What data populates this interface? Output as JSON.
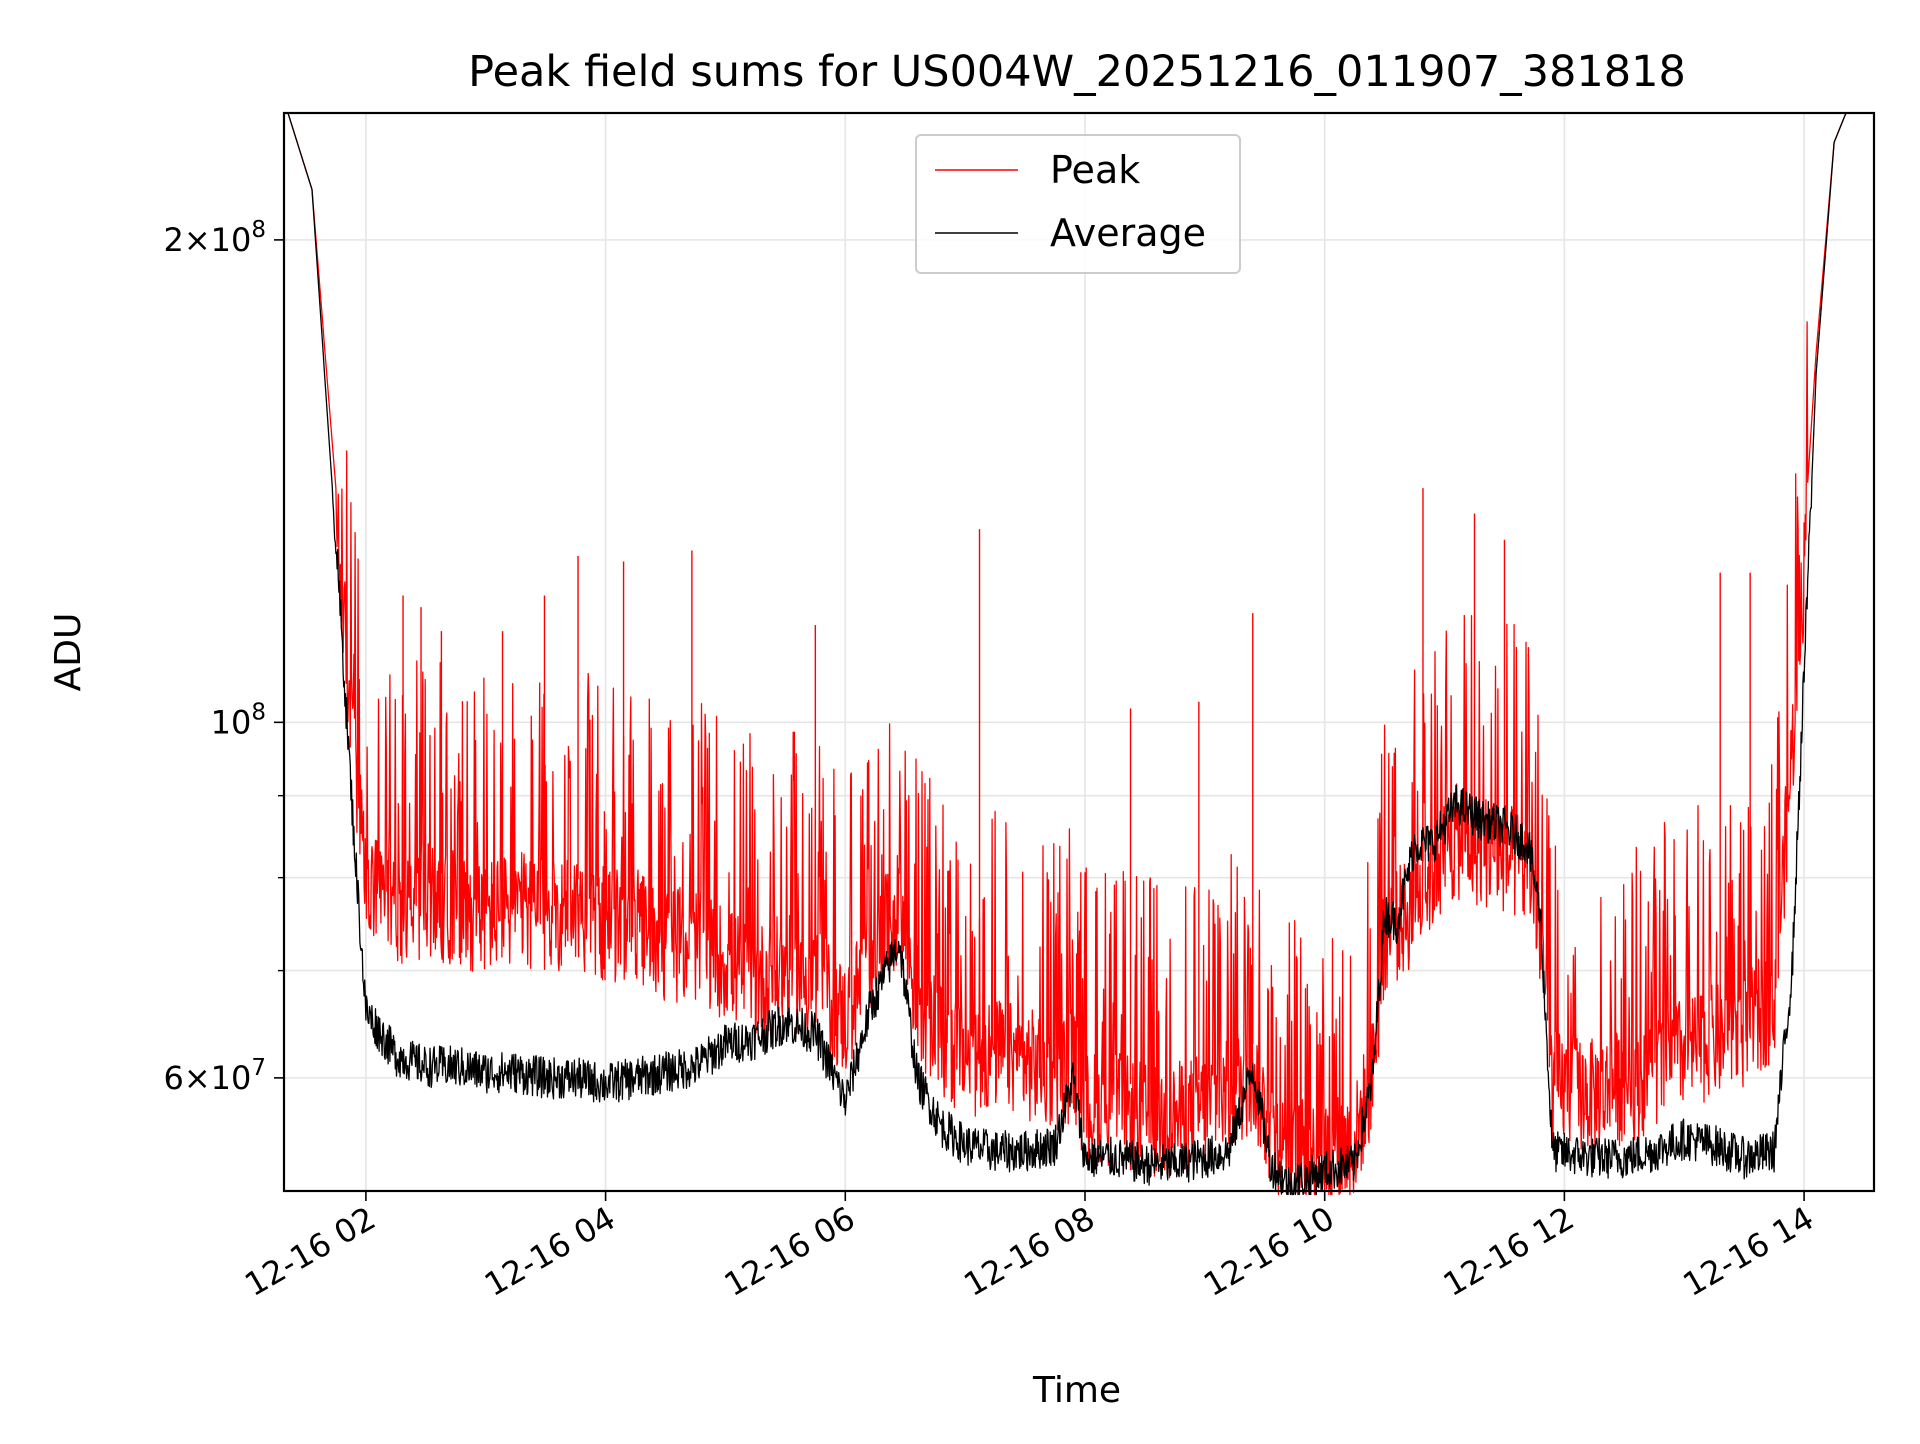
{
  "chart_data": {
    "type": "line",
    "title": "Peak field sums for US004W_20251216_011907_381818",
    "xlabel": "Time",
    "ylabel": "ADU",
    "yscale": "log",
    "ylim": [
      51000000,
      240000000
    ],
    "xlim": [
      "12-16 01:19",
      "12-16 14:35"
    ],
    "grid": true,
    "legend": {
      "placement": "top-center",
      "entries": [
        "Peak",
        "Average"
      ]
    },
    "x_ticks": [
      "12-16 02",
      "12-16 04",
      "12-16 06",
      "12-16 08",
      "12-16 10",
      "12-16 12",
      "12-16 14"
    ],
    "x_tick_hours": [
      2,
      4,
      6,
      8,
      10,
      12,
      14
    ],
    "y_major_ticks": [
      {
        "value": 60000000,
        "mantissa": "6",
        "exponent": "7"
      },
      {
        "value": 100000000,
        "mantissa": "",
        "exponent": "8"
      },
      {
        "value": 200000000,
        "mantissa": "2",
        "exponent": "8"
      }
    ],
    "y_minor_ticks": [
      70000000,
      80000000,
      90000000
    ],
    "series": [
      {
        "name": "Peak",
        "color": "#ff0000",
        "x_hours": [
          1.35,
          1.55,
          1.75,
          1.9,
          2.0,
          2.25,
          2.5,
          2.75,
          3.0,
          3.25,
          3.5,
          3.75,
          4.0,
          4.25,
          4.5,
          4.75,
          5.0,
          5.25,
          5.5,
          5.75,
          6.0,
          6.2,
          6.45,
          6.6,
          6.8,
          7.0,
          7.25,
          7.5,
          7.75,
          7.9,
          8.0,
          8.25,
          8.5,
          8.75,
          9.0,
          9.2,
          9.4,
          9.55,
          9.7,
          9.85,
          10.0,
          10.25,
          10.4,
          10.5,
          10.6,
          10.75,
          10.9,
          11.1,
          11.3,
          11.5,
          11.7,
          11.8,
          11.9,
          12.25,
          12.5,
          12.75,
          13.0,
          13.25,
          13.5,
          13.75,
          13.9,
          14.1,
          14.25,
          14.35
        ],
        "values": [
          240000000,
          215000000,
          140000000,
          100000000,
          82000000,
          80000000,
          81000000,
          80000000,
          79000000,
          80000000,
          79000000,
          80000000,
          78000000,
          78000000,
          76000000,
          76000000,
          74000000,
          72000000,
          73000000,
          72000000,
          68000000,
          74000000,
          80000000,
          70000000,
          66000000,
          64000000,
          65000000,
          64000000,
          63000000,
          64000000,
          60000000,
          60000000,
          59000000,
          59000000,
          60000000,
          61000000,
          63000000,
          58000000,
          56000000,
          56000000,
          56000000,
          57000000,
          63000000,
          77000000,
          78000000,
          80000000,
          84000000,
          88000000,
          87000000,
          86000000,
          84000000,
          77000000,
          62000000,
          61000000,
          62000000,
          63000000,
          65000000,
          66000000,
          67000000,
          70000000,
          100000000,
          170000000,
          230000000,
          240000000
        ],
        "spikes": [
          {
            "x_hour": 2.31,
            "value": 120000000
          },
          {
            "x_hour": 2.46,
            "value": 118000000
          },
          {
            "x_hour": 2.63,
            "value": 114000000
          },
          {
            "x_hour": 3.14,
            "value": 114000000
          },
          {
            "x_hour": 3.49,
            "value": 120000000
          },
          {
            "x_hour": 3.77,
            "value": 127000000
          },
          {
            "x_hour": 4.15,
            "value": 126000000
          },
          {
            "x_hour": 4.72,
            "value": 128000000
          },
          {
            "x_hour": 5.75,
            "value": 115000000
          },
          {
            "x_hour": 7.12,
            "value": 132000000
          },
          {
            "x_hour": 8.38,
            "value": 102000000
          },
          {
            "x_hour": 8.95,
            "value": 103000000
          },
          {
            "x_hour": 9.4,
            "value": 117000000
          },
          {
            "x_hour": 10.82,
            "value": 140000000
          },
          {
            "x_hour": 11.25,
            "value": 135000000
          },
          {
            "x_hour": 11.5,
            "value": 130000000
          },
          {
            "x_hour": 13.3,
            "value": 124000000
          },
          {
            "x_hour": 13.55,
            "value": 124000000
          }
        ]
      },
      {
        "name": "Average",
        "color": "#000000",
        "x_hours": [
          1.35,
          1.55,
          1.75,
          1.9,
          2.0,
          2.25,
          2.5,
          2.75,
          3.0,
          3.25,
          3.5,
          3.75,
          4.0,
          4.25,
          4.5,
          4.75,
          5.0,
          5.25,
          5.5,
          5.75,
          6.0,
          6.2,
          6.45,
          6.6,
          6.8,
          7.0,
          7.25,
          7.5,
          7.75,
          7.9,
          8.0,
          8.25,
          8.5,
          8.75,
          9.0,
          9.2,
          9.4,
          9.55,
          9.7,
          9.85,
          10.0,
          10.25,
          10.4,
          10.5,
          10.6,
          10.75,
          10.9,
          11.1,
          11.3,
          11.5,
          11.7,
          11.8,
          11.9,
          12.25,
          12.5,
          12.75,
          13.0,
          13.25,
          13.5,
          13.75,
          13.9,
          14.1,
          14.25,
          14.35
        ],
        "values": [
          240000000,
          215000000,
          130000000,
          85000000,
          66000000,
          62000000,
          61000000,
          61000000,
          60500000,
          60500000,
          60000000,
          60000000,
          59500000,
          60000000,
          60500000,
          61000000,
          63000000,
          63500000,
          65000000,
          64000000,
          58000000,
          66000000,
          73000000,
          60000000,
          56000000,
          54500000,
          54000000,
          54000000,
          54500000,
          60000000,
          53500000,
          53500000,
          53000000,
          53000000,
          53500000,
          54000000,
          61000000,
          53000000,
          51500000,
          52000000,
          52500000,
          53000000,
          60000000,
          76000000,
          75000000,
          84000000,
          84000000,
          89000000,
          87000000,
          86000000,
          84000000,
          76000000,
          54000000,
          53500000,
          53500000,
          54000000,
          55000000,
          54500000,
          53500000,
          54000000,
          70000000,
          165000000,
          230000000,
          240000000
        ]
      }
    ]
  }
}
